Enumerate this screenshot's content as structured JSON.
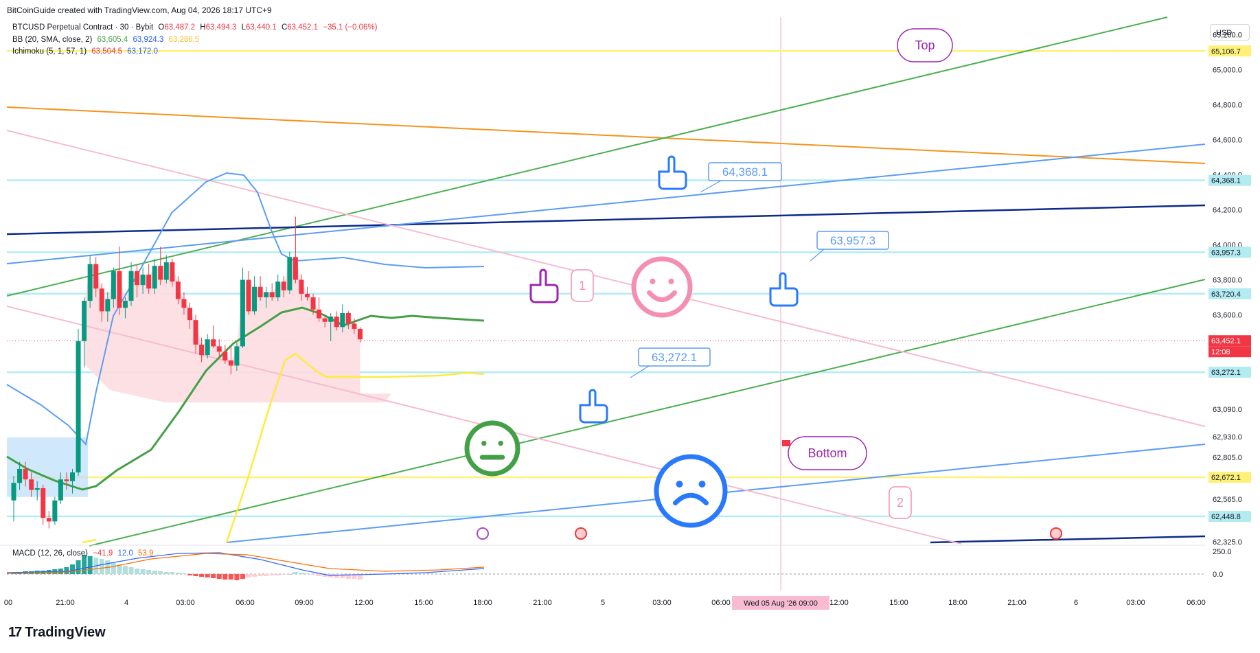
{
  "credit": "BitCoinGuide created with TradingView.com, Aug 04, 2026 18:17 UTC+9",
  "brand": "TradingView",
  "currency_button": "USD",
  "legend": {
    "symbol": {
      "name": "BTCUSD Perpetual Contract · 30 · Bybit",
      "o_label": "O",
      "o": "63,487.2",
      "h_label": "H",
      "h": "63,494.3",
      "l_label": "L",
      "l": "63,440.1",
      "c_label": "C",
      "c": "63,452.1",
      "change": "−35.1 (−0.06%)"
    },
    "bb": {
      "name": "BB (20, SMA, close, 2)",
      "basis": "63,605.4",
      "upper": "63,924.3",
      "lower": "63,286.5"
    },
    "ichimoku": {
      "name": "Ichimoku (5, 1, 57, 1)",
      "v1": "63,504.5",
      "v2": "63,172.0"
    },
    "macd": {
      "name": "MACD (12, 26, close)",
      "hist": "−41.9",
      "macd": "12.0",
      "signal": "53.9"
    }
  },
  "colors": {
    "up": "#089981",
    "down": "#f23645",
    "bb": "#2962ff",
    "bb_line": "#5b9cf6",
    "basis": "#43a047",
    "yellow": "#ffeb3b",
    "orange": "#f7931a",
    "navy": "#0d2a8a",
    "pink": "#f8bbd0",
    "green_line": "#4caf50",
    "purple": "#9c27b0",
    "cyan": "#b2ebf2"
  },
  "chart_data": {
    "type": "candlestick",
    "y_axis": {
      "range": [
        62300,
        65300
      ],
      "ticks": [
        "65,200.0",
        "65,000.0",
        "64,800.0",
        "64,600.0",
        "64,400.0",
        "64,200.0",
        "64,000.0",
        "63,800.0",
        "63,600.0",
        "63,090.0",
        "62,930.0",
        "62,805.0",
        "62,565.0",
        "62,325.0"
      ]
    },
    "x_axis": {
      "ticks": [
        "00",
        "21:00",
        "4",
        "03:00",
        "06:00",
        "09:00",
        "12:00",
        "15:00",
        "18:00",
        "21:00",
        "5",
        "03:00",
        "06:00",
        "12:00",
        "15:00",
        "18:00",
        "21:00",
        "6",
        "03:00",
        "06:00"
      ],
      "crosshair_label": "Wed 05 Aug '26  09:00"
    },
    "price_labels": [
      {
        "value": 65106.7,
        "text": "65,106.7",
        "color": "#fff176"
      },
      {
        "value": 64368.1,
        "text": "64,368.1",
        "color": "#b2ebf2"
      },
      {
        "value": 63957.3,
        "text": "63,957.3",
        "color": "#b2ebf2"
      },
      {
        "value": 63720.4,
        "text": "63,720.4",
        "color": "#b2ebf2"
      },
      {
        "value": 63452.1,
        "text": "63,452.1",
        "color": "#f23645"
      },
      {
        "value": 63272.1,
        "text": "63,272.1",
        "color": "#b2ebf2"
      },
      {
        "value": 62672.1,
        "text": "62,672.1",
        "color": "#fff176"
      },
      {
        "value": 62448.8,
        "text": "62,448.8",
        "color": "#b2ebf2"
      }
    ],
    "countdown": "12:08",
    "horizontal_levels": [
      {
        "value": 65106.7,
        "color": "#fff176"
      },
      {
        "value": 64368.1,
        "color": "#b2ebf2"
      },
      {
        "value": 63957.3,
        "color": "#b2ebf2"
      },
      {
        "value": 63720.4,
        "color": "#b2ebf2"
      },
      {
        "value": 63272.1,
        "color": "#b2ebf2"
      },
      {
        "value": 62672.1,
        "color": "#fff176"
      },
      {
        "value": 62448.8,
        "color": "#b2ebf2"
      }
    ],
    "candles": [
      [
        62540,
        62680,
        62420,
        62640
      ],
      [
        62640,
        62760,
        62600,
        62720
      ],
      [
        62720,
        62760,
        62620,
        62660
      ],
      [
        62660,
        62700,
        62560,
        62600
      ],
      [
        62600,
        62650,
        62540,
        62610
      ],
      [
        62610,
        62630,
        62400,
        62440
      ],
      [
        62440,
        62480,
        62380,
        62420
      ],
      [
        62420,
        62560,
        62400,
        62540
      ],
      [
        62540,
        62700,
        62520,
        62660
      ],
      [
        62660,
        62700,
        62600,
        62650
      ],
      [
        62650,
        62720,
        62580,
        62700
      ],
      [
        62700,
        63520,
        62680,
        63450
      ],
      [
        63450,
        63700,
        63300,
        63680
      ],
      [
        63680,
        63940,
        63640,
        63890
      ],
      [
        63890,
        63930,
        63700,
        63750
      ],
      [
        63750,
        63780,
        63560,
        63620
      ],
      [
        63620,
        63730,
        63560,
        63690
      ],
      [
        63690,
        63870,
        63640,
        63850
      ],
      [
        63850,
        63990,
        63600,
        63640
      ],
      [
        63640,
        63700,
        63580,
        63680
      ],
      [
        63680,
        63900,
        63650,
        63850
      ],
      [
        63850,
        63890,
        63700,
        63770
      ],
      [
        63770,
        63870,
        63720,
        63830
      ],
      [
        63830,
        63890,
        63720,
        63750
      ],
      [
        63750,
        63920,
        63720,
        63880
      ],
      [
        63880,
        63990,
        63770,
        63800
      ],
      [
        63800,
        63940,
        63780,
        63900
      ],
      [
        63900,
        63920,
        63760,
        63790
      ],
      [
        63790,
        63820,
        63660,
        63690
      ],
      [
        63690,
        63730,
        63600,
        63640
      ],
      [
        63640,
        63670,
        63520,
        63570
      ],
      [
        63570,
        63600,
        63380,
        63430
      ],
      [
        63430,
        63470,
        63330,
        63370
      ],
      [
        63370,
        63490,
        63350,
        63460
      ],
      [
        63460,
        63540,
        63410,
        63420
      ],
      [
        63420,
        63460,
        63360,
        63390
      ],
      [
        63390,
        63430,
        63320,
        63340
      ],
      [
        63340,
        63420,
        63260,
        63310
      ],
      [
        63310,
        63440,
        63280,
        63420
      ],
      [
        63420,
        63870,
        63410,
        63800
      ],
      [
        63800,
        63850,
        63600,
        63620
      ],
      [
        63620,
        63820,
        63600,
        63760
      ],
      [
        63760,
        63820,
        63680,
        63700
      ],
      [
        63700,
        63760,
        63640,
        63730
      ],
      [
        63730,
        63780,
        63680,
        63700
      ],
      [
        63700,
        63830,
        63680,
        63790
      ],
      [
        63790,
        63820,
        63700,
        63740
      ],
      [
        63740,
        63960,
        63720,
        63930
      ],
      [
        63930,
        64160,
        63780,
        63800
      ],
      [
        63800,
        63830,
        63680,
        63720
      ],
      [
        63720,
        63760,
        63680,
        63700
      ],
      [
        63700,
        63720,
        63600,
        63630
      ],
      [
        63630,
        63700,
        63560,
        63580
      ],
      [
        63580,
        63600,
        63530,
        63560
      ],
      [
        63560,
        63610,
        63450,
        63590
      ],
      [
        63590,
        63620,
        63510,
        63530
      ],
      [
        63530,
        63660,
        63500,
        63610
      ],
      [
        63610,
        63620,
        63520,
        63550
      ],
      [
        63550,
        63580,
        63490,
        63520
      ],
      [
        63520,
        63530,
        63440,
        63460
      ]
    ],
    "macd_axis": [
      "250.0",
      "0.0"
    ],
    "annotations": [
      "Top",
      "Bottom",
      "1",
      "2",
      "64,368.1",
      "63,957.3",
      "63,272.1"
    ]
  }
}
